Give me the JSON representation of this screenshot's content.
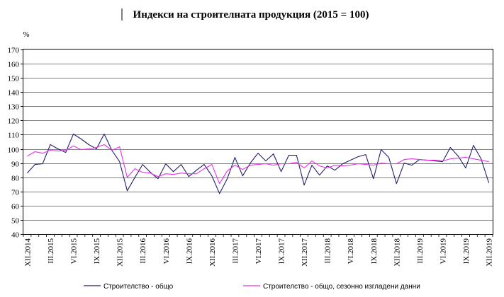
{
  "chart_data": {
    "type": "line",
    "title": "Индекси на строителната продукция (2015 = 100)",
    "ylabel": "%",
    "xlabel": "",
    "ylim": [
      40,
      170
    ],
    "yticks": [
      40,
      50,
      60,
      70,
      80,
      90,
      100,
      110,
      120,
      130,
      140,
      150,
      160,
      170
    ],
    "grid": true,
    "legend_position": "bottom",
    "x": [
      "XII.2014",
      "I.2015",
      "II.2015",
      "III.2015",
      "IV.2015",
      "V.2015",
      "VI.2015",
      "VII.2015",
      "VIII.2015",
      "IX.2015",
      "X.2015",
      "XI.2015",
      "XII.2015",
      "I.2016",
      "II.2016",
      "III.2016",
      "IV.2016",
      "V.2016",
      "VI.2016",
      "VII.2016",
      "VIII.2016",
      "IX.2016",
      "X.2016",
      "XI.2016",
      "XII.2016",
      "I.2017",
      "II.2017",
      "III.2017",
      "IV.2017",
      "V.2017",
      "VI.2017",
      "VII.2017",
      "VIII.2017",
      "IX.2017",
      "X.2017",
      "XI.2017",
      "XII.2017",
      "I.2018",
      "II.2018",
      "III.2018",
      "IV.2018",
      "V.2018",
      "VI.2018",
      "VII.2018",
      "VIII.2018",
      "IX.2018",
      "X.2018",
      "XI.2018",
      "XII.2018",
      "I.2019",
      "II.2019",
      "III.2019",
      "IV.2019",
      "V.2019",
      "VI.2019",
      "VII.2019",
      "VIII.2019",
      "IX.2019",
      "X.2019",
      "XI.2019",
      "XII.2019"
    ],
    "xtick_labels": [
      "XII.2014",
      "III.2015",
      "VI.2015",
      "IX.2015",
      "XII.2015",
      "III.2016",
      "VI.2016",
      "IX.2016",
      "XII.2016",
      "III.2017",
      "VI.2017",
      "IX.2017",
      "XII.2017",
      "III.2018",
      "VI.2018",
      "IX.2018",
      "XII.2018",
      "III.2019",
      "VI.2019",
      "IX.2019",
      "XII.2019"
    ],
    "series": [
      {
        "name": "Строителство - общо",
        "color": "#1f1f6e",
        "values": [
          83,
          89,
          89.5,
          103,
          100,
          97.5,
          110.5,
          107,
          103,
          100,
          110.5,
          99,
          91,
          70.5,
          80,
          89,
          83.5,
          79,
          89.5,
          84,
          89,
          80.5,
          85,
          89,
          81,
          68.5,
          79,
          94,
          81,
          90,
          97,
          91.5,
          96.5,
          84,
          95.5,
          95.5,
          74.5,
          88.5,
          81.5,
          88,
          85,
          89.5,
          92,
          94.5,
          96,
          79,
          99.5,
          94,
          75.5,
          90,
          88.5,
          92.5,
          92,
          91.5,
          91,
          101,
          95,
          86.5,
          102.5,
          93,
          76
        ]
      },
      {
        "name": "Строителство - общо, сезонно изгладени данни",
        "color": "#e832e8",
        "values": [
          95,
          98,
          97,
          99,
          98.5,
          99,
          102,
          99.5,
          100,
          101,
          103,
          99,
          101.5,
          80,
          86,
          83.5,
          83,
          80.5,
          82.5,
          82,
          83,
          82.5,
          82.5,
          86,
          89,
          75.5,
          84.5,
          88.5,
          85.5,
          88.5,
          89,
          89.5,
          88.5,
          89.5,
          89.5,
          90.5,
          86.5,
          91.5,
          88,
          86.5,
          88.5,
          88,
          88.5,
          89.5,
          89,
          88.5,
          90,
          89.5,
          89.5,
          92.5,
          93,
          92.5,
          92,
          92,
          91.5,
          93,
          93.5,
          94,
          93,
          92,
          91
        ]
      }
    ]
  }
}
